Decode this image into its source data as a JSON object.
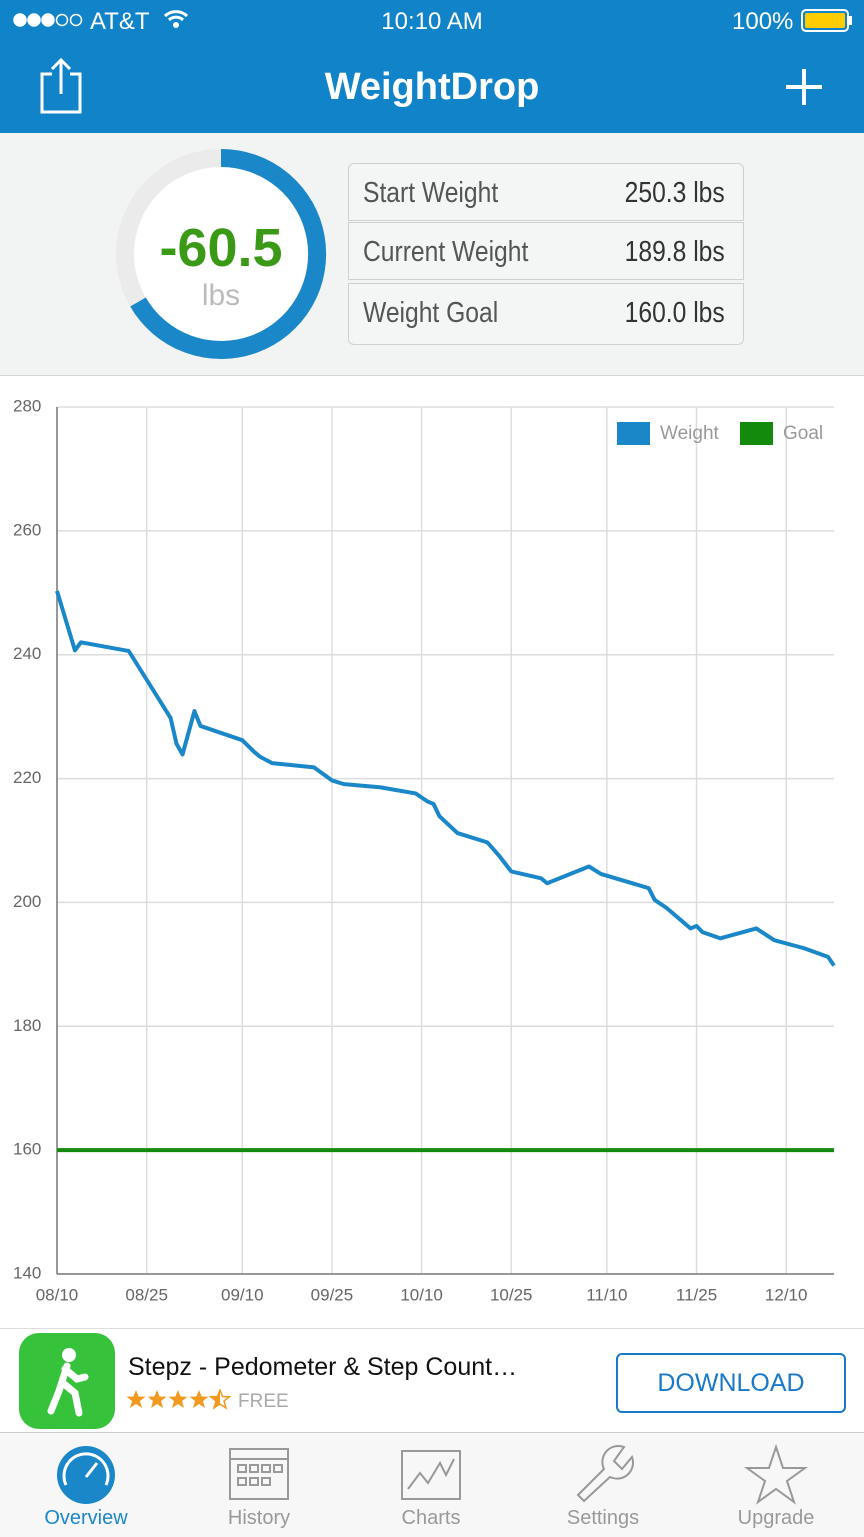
{
  "status_bar": {
    "carrier": "AT&T",
    "time": "10:10 AM",
    "battery": "100%"
  },
  "nav_bar": {
    "title": "WeightDrop"
  },
  "summary": {
    "change": "-60.5",
    "change_unit": "lbs",
    "stats": [
      {
        "label": "Start Weight",
        "value": "250.3 lbs"
      },
      {
        "label": "Current Weight",
        "value": "189.8 lbs"
      },
      {
        "label": "Weight Goal",
        "value": "160.0 lbs"
      }
    ]
  },
  "chart_data": {
    "type": "line",
    "x": [
      "08/10",
      "08/13",
      "08/14",
      "08/22",
      "08/29",
      "08/30",
      "08/31",
      "09/02",
      "09/03",
      "09/10",
      "09/12",
      "09/13",
      "09/15",
      "09/22",
      "09/25",
      "09/27",
      "10/03",
      "10/09",
      "10/11",
      "10/12",
      "10/13",
      "10/16",
      "10/21",
      "10/23",
      "10/25",
      "10/30",
      "10/31",
      "11/07",
      "11/09",
      "11/17",
      "11/18",
      "11/20",
      "11/24",
      "11/25",
      "11/26",
      "11/29",
      "12/05",
      "12/08",
      "12/13",
      "12/17",
      "12/18"
    ],
    "series": [
      {
        "name": "Weight",
        "color": "#1a87c9",
        "values": [
          250.3,
          240.7,
          242,
          240.6,
          229.8,
          225.6,
          223.9,
          230.9,
          228.5,
          226.2,
          224.3,
          223.5,
          222.5,
          221.8,
          219.7,
          219.1,
          218.6,
          217.6,
          216.3,
          215.9,
          213.9,
          211.2,
          209.7,
          207.5,
          205,
          203.9,
          203.1,
          205.8,
          204.6,
          202.3,
          200.4,
          199.1,
          195.8,
          196.2,
          195.2,
          194.2,
          195.8,
          193.9,
          192.6,
          191.2,
          189.8
        ]
      },
      {
        "name": "Goal",
        "color": "#138a0c",
        "values": [
          160,
          160,
          160,
          160,
          160,
          160,
          160,
          160,
          160,
          160,
          160,
          160,
          160,
          160,
          160,
          160,
          160,
          160,
          160,
          160,
          160,
          160,
          160,
          160,
          160,
          160,
          160,
          160,
          160,
          160,
          160,
          160,
          160,
          160,
          160,
          160,
          160,
          160,
          160,
          160,
          160
        ]
      }
    ],
    "xlim": [
      "08/10",
      "12/18"
    ],
    "xticks": [
      "08/10",
      "08/25",
      "09/10",
      "09/25",
      "10/10",
      "10/25",
      "11/10",
      "11/25",
      "12/10"
    ],
    "ylim": [
      140,
      280
    ],
    "yticks": [
      140,
      160,
      180,
      200,
      220,
      240,
      260,
      280
    ],
    "grid": true,
    "legend": "top-right"
  },
  "ad": {
    "title": "Stepz - Pedometer & Step Count…",
    "price": "FREE",
    "button": "DOWNLOAD"
  },
  "tab_bar": {
    "tabs": [
      "Overview",
      "History",
      "Charts",
      "Settings",
      "Upgrade"
    ]
  }
}
